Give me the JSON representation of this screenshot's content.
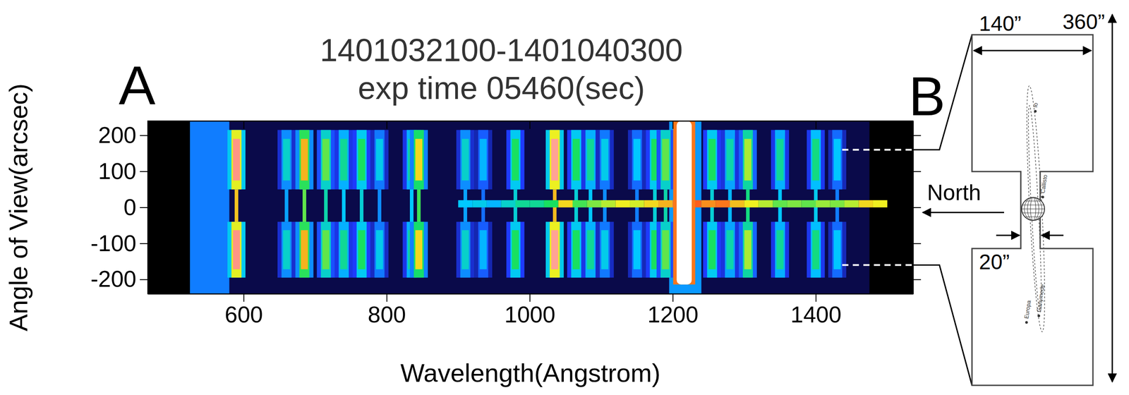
{
  "chart_data": {
    "type": "spectral_image",
    "panel_label": "A",
    "title": "1401032100-1401040300",
    "subtitle": "exp time 05460(sec)",
    "x_label": "Wavelength(Angstrom)",
    "y_label": "Angle of View(arcsec)",
    "xlim": [
      466,
      1536
    ],
    "xticks": [
      600,
      800,
      1000,
      1200,
      1400
    ],
    "ylim": [
      -240,
      240
    ],
    "yticks": [
      -200,
      -100,
      0,
      100,
      200
    ],
    "zlim": [
      0,
      1
    ],
    "detector_range": [
      525,
      1475
    ],
    "background_level": 0.07,
    "bands": [
      {
        "range": [
          525,
          580
        ],
        "intensity": 0.32
      },
      {
        "range": [
          1195,
          1240
        ],
        "intensity": 0.35
      }
    ],
    "line_fwhm": 14,
    "emission_extent": [
      -195,
      215
    ],
    "neck": [
      -40,
      50
    ],
    "lines": [
      {
        "wavelength": 590,
        "intensity": 0.92
      },
      {
        "wavelength": 660,
        "intensity": 0.45
      },
      {
        "wavelength": 685,
        "intensity": 0.75
      },
      {
        "wavelength": 715,
        "intensity": 0.6
      },
      {
        "wavelength": 740,
        "intensity": 0.5
      },
      {
        "wavelength": 765,
        "intensity": 0.55
      },
      {
        "wavelength": 790,
        "intensity": 0.42
      },
      {
        "wavelength": 835,
        "intensity": 0.5
      },
      {
        "wavelength": 845,
        "intensity": 0.72
      },
      {
        "wavelength": 910,
        "intensity": 0.45
      },
      {
        "wavelength": 935,
        "intensity": 0.38
      },
      {
        "wavelength": 980,
        "intensity": 0.55
      },
      {
        "wavelength": 1035,
        "intensity": 0.93
      },
      {
        "wavelength": 1065,
        "intensity": 0.55
      },
      {
        "wavelength": 1085,
        "intensity": 0.5
      },
      {
        "wavelength": 1105,
        "intensity": 0.42
      },
      {
        "wavelength": 1150,
        "intensity": 0.4
      },
      {
        "wavelength": 1175,
        "intensity": 0.55
      },
      {
        "wavelength": 1190,
        "intensity": 0.6
      },
      {
        "wavelength": 1255,
        "intensity": 0.55
      },
      {
        "wavelength": 1280,
        "intensity": 0.48
      },
      {
        "wavelength": 1305,
        "intensity": 0.65
      },
      {
        "wavelength": 1350,
        "intensity": 0.5
      },
      {
        "wavelength": 1400,
        "intensity": 0.52
      },
      {
        "wavelength": 1430,
        "intensity": 0.4
      }
    ],
    "geocorona": {
      "wavelength": 1216,
      "intensity": 1,
      "extent": [
        -214,
        240
      ]
    },
    "disk": {
      "extent": [
        0,
        20
      ],
      "wavelength": [
        900,
        920,
        940,
        960,
        980,
        1000,
        1020,
        1040,
        1060,
        1080,
        1100,
        1120,
        1140,
        1160,
        1180,
        1200,
        1220,
        1240,
        1260,
        1280,
        1300,
        1320,
        1340,
        1360,
        1380,
        1400,
        1420,
        1440,
        1460,
        1480
      ],
      "intensity": [
        0.4,
        0.42,
        0.38,
        0.45,
        0.5,
        0.5,
        0.55,
        0.72,
        0.58,
        0.62,
        0.66,
        0.7,
        0.68,
        0.72,
        0.75,
        0.8,
        0.82,
        0.78,
        0.8,
        0.74,
        0.7,
        0.66,
        0.6,
        0.62,
        0.6,
        0.64,
        0.62,
        0.66,
        0.72,
        0.7
      ]
    },
    "slit_marks": [
      160,
      -160
    ],
    "slit_mark_start": 1437
  },
  "diagram": {
    "panel_label": "B",
    "width_label": "140”",
    "length_label": "360”",
    "narrow_label": "20”",
    "direction_label": "North",
    "moons": [
      "Io",
      "Callisto",
      "Europa",
      "Ganymede"
    ]
  }
}
